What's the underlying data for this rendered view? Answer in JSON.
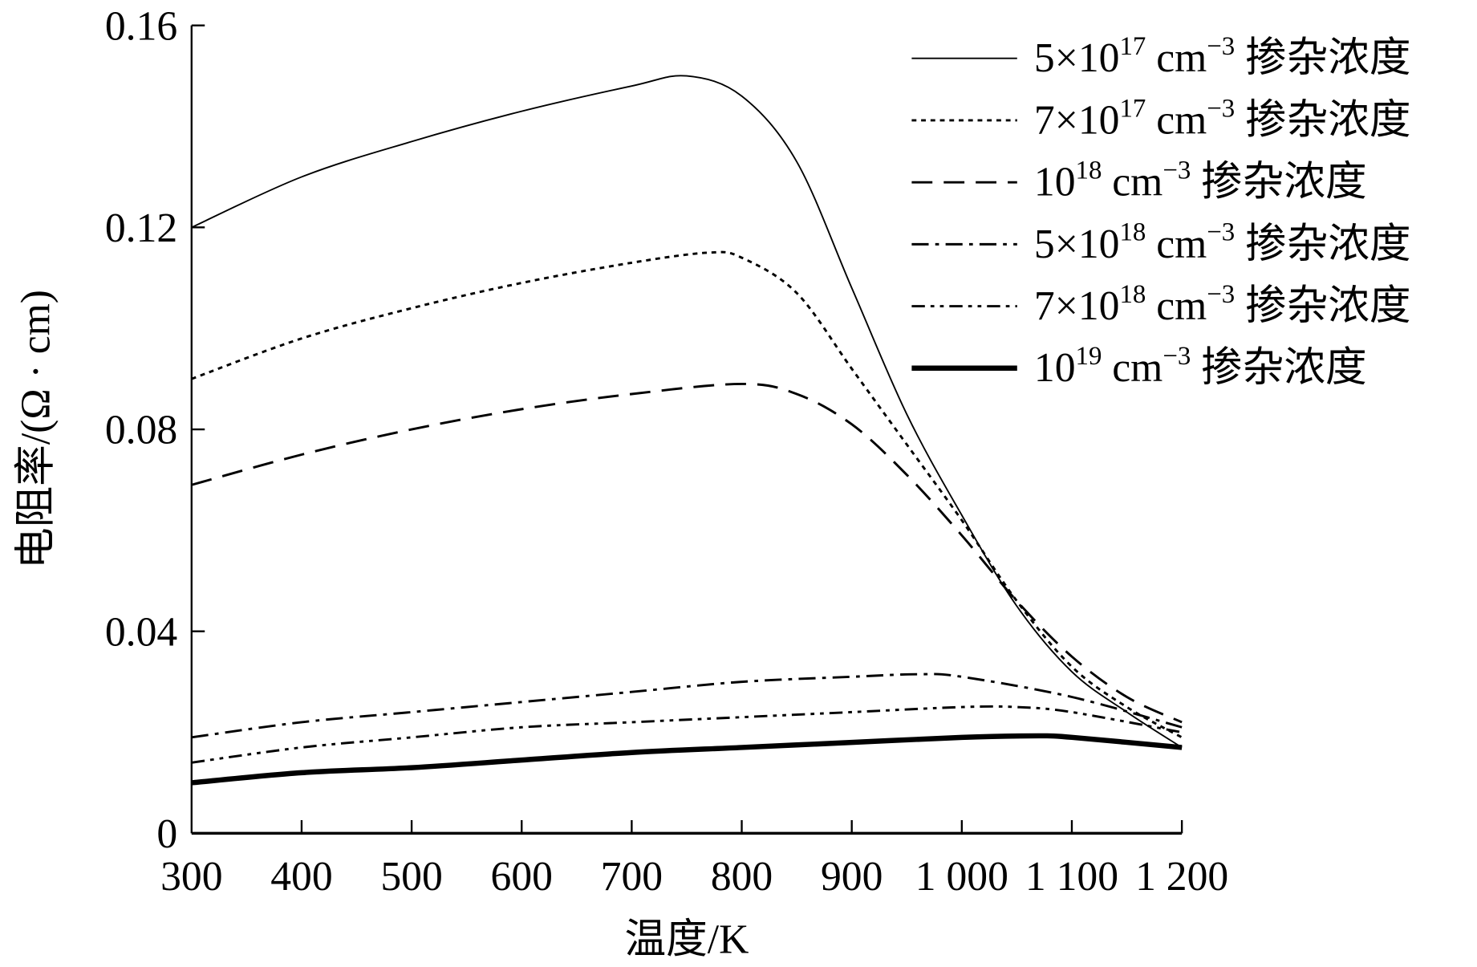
{
  "chart_data": {
    "type": "line",
    "xlabel": "温度/K",
    "ylabel": "电阻率/(Ω · cm)",
    "xlim": [
      300,
      1200
    ],
    "ylim": [
      0,
      0.16
    ],
    "xticks": [
      300,
      400,
      500,
      600,
      700,
      800,
      900,
      1000,
      1100,
      1200
    ],
    "xtick_labels": [
      "300",
      "400",
      "500",
      "600",
      "700",
      "800",
      "900",
      "1 000",
      "1 100",
      "1 200"
    ],
    "yticks": [
      0,
      0.04,
      0.08,
      0.12,
      0.16
    ],
    "ytick_labels": [
      "0",
      "0.04",
      "0.08",
      "0.12",
      "0.16"
    ],
    "grid": false,
    "legend_placement": "top-right",
    "series": [
      {
        "name": "5×10^17 cm^-3 掺杂浓度",
        "label": {
          "pre": "5×10",
          "exp": "17",
          "unit": " cm",
          "uexp": "−3",
          "post": " 掺杂浓度"
        },
        "style": "solid",
        "x": [
          300,
          400,
          500,
          600,
          700,
          750,
          800,
          850,
          900,
          950,
          1000,
          1050,
          1100,
          1150,
          1200
        ],
        "y": [
          0.12,
          0.13,
          0.137,
          0.143,
          0.148,
          0.15,
          0.146,
          0.133,
          0.108,
          0.083,
          0.063,
          0.045,
          0.032,
          0.024,
          0.017
        ]
      },
      {
        "name": "7×10^17 cm^-3 掺杂浓度",
        "label": {
          "pre": "7×10",
          "exp": "17",
          "unit": " cm",
          "uexp": "−3",
          "post": " 掺杂浓度"
        },
        "style": "dotted",
        "x": [
          300,
          400,
          500,
          600,
          700,
          770,
          800,
          850,
          900,
          950,
          1000,
          1050,
          1100,
          1150,
          1200
        ],
        "y": [
          0.09,
          0.098,
          0.104,
          0.109,
          0.113,
          0.115,
          0.114,
          0.107,
          0.092,
          0.077,
          0.062,
          0.046,
          0.033,
          0.025,
          0.019
        ]
      },
      {
        "name": "10^18 cm^-3 掺杂浓度",
        "label": {
          "pre": "10",
          "exp": "18",
          "unit": " cm",
          "uexp": "−3",
          "post": " 掺杂浓度"
        },
        "style": "dashed",
        "x": [
          300,
          400,
          500,
          600,
          700,
          800,
          850,
          900,
          950,
          1000,
          1050,
          1100,
          1150,
          1200
        ],
        "y": [
          0.069,
          0.075,
          0.08,
          0.084,
          0.087,
          0.089,
          0.087,
          0.081,
          0.071,
          0.059,
          0.046,
          0.035,
          0.027,
          0.022
        ]
      },
      {
        "name": "5×10^18 cm^-3 掺杂浓度",
        "label": {
          "pre": "5×10",
          "exp": "18",
          "unit": " cm",
          "uexp": "−3",
          "post": " 掺杂浓度"
        },
        "style": "dash-dot",
        "x": [
          300,
          400,
          500,
          600,
          700,
          800,
          900,
          960,
          1000,
          1100,
          1200
        ],
        "y": [
          0.019,
          0.022,
          0.024,
          0.026,
          0.028,
          0.03,
          0.031,
          0.0315,
          0.031,
          0.027,
          0.021
        ]
      },
      {
        "name": "7×10^18 cm^-3 掺杂浓度",
        "label": {
          "pre": "7×10",
          "exp": "18",
          "unit": " cm",
          "uexp": "−3",
          "post": " 掺杂浓度"
        },
        "style": "dash-dot-dot",
        "x": [
          300,
          400,
          500,
          600,
          700,
          800,
          900,
          1000,
          1050,
          1100,
          1200
        ],
        "y": [
          0.014,
          0.017,
          0.019,
          0.021,
          0.022,
          0.023,
          0.024,
          0.025,
          0.025,
          0.024,
          0.02
        ]
      },
      {
        "name": "10^19 cm^-3 掺杂浓度",
        "label": {
          "pre": "10",
          "exp": "19",
          "unit": " cm",
          "uexp": "−3",
          "post": " 掺杂浓度"
        },
        "style": "thick-solid",
        "x": [
          300,
          400,
          500,
          600,
          700,
          800,
          900,
          1000,
          1070,
          1100,
          1200
        ],
        "y": [
          0.01,
          0.012,
          0.013,
          0.0145,
          0.016,
          0.017,
          0.018,
          0.019,
          0.0193,
          0.019,
          0.017
        ]
      }
    ]
  }
}
